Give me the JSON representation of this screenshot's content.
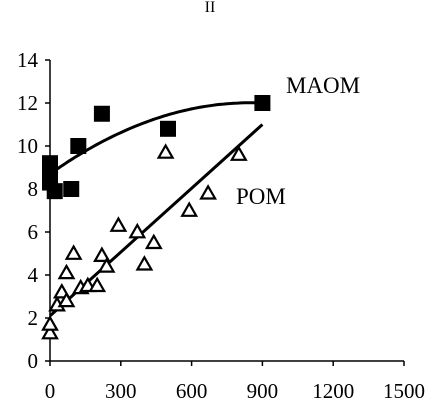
{
  "chart_data": {
    "type": "scatter",
    "title": "II",
    "xlabel": "",
    "ylabel": "",
    "xlim": [
      0,
      1500
    ],
    "ylim": [
      0,
      14
    ],
    "x_ticks": [
      "0",
      "300",
      "600",
      "900",
      "1200",
      "1500"
    ],
    "y_ticks": [
      "0",
      "2",
      "4",
      "6",
      "8",
      "10",
      "12",
      "14"
    ],
    "grid": false,
    "legend": "none",
    "series": [
      {
        "name": "MAOM",
        "marker": "filled-square",
        "color": "#000000",
        "points": [
          {
            "x": 0,
            "y": 9.2
          },
          {
            "x": 0,
            "y": 8.6
          },
          {
            "x": 0,
            "y": 8.3
          },
          {
            "x": 20,
            "y": 7.9
          },
          {
            "x": 90,
            "y": 8.0
          },
          {
            "x": 120,
            "y": 10.0
          },
          {
            "x": 220,
            "y": 11.5
          },
          {
            "x": 500,
            "y": 10.8
          },
          {
            "x": 900,
            "y": 12.0
          }
        ],
        "trend": {
          "kind": "quadratic",
          "x_range": [
            0,
            900
          ],
          "y_at_start": 8.7,
          "y_at_end": 12.0,
          "x_of_max": 850
        }
      },
      {
        "name": "POM",
        "marker": "open-triangle",
        "color": "#000000",
        "points": [
          {
            "x": 0,
            "y": 1.3
          },
          {
            "x": 0,
            "y": 1.7
          },
          {
            "x": 30,
            "y": 2.6
          },
          {
            "x": 50,
            "y": 3.2
          },
          {
            "x": 70,
            "y": 2.8
          },
          {
            "x": 70,
            "y": 4.1
          },
          {
            "x": 100,
            "y": 5.0
          },
          {
            "x": 130,
            "y": 3.4
          },
          {
            "x": 160,
            "y": 3.5
          },
          {
            "x": 200,
            "y": 3.5
          },
          {
            "x": 220,
            "y": 4.9
          },
          {
            "x": 240,
            "y": 4.4
          },
          {
            "x": 290,
            "y": 6.3
          },
          {
            "x": 370,
            "y": 6.0
          },
          {
            "x": 400,
            "y": 4.5
          },
          {
            "x": 440,
            "y": 5.5
          },
          {
            "x": 490,
            "y": 9.7
          },
          {
            "x": 590,
            "y": 7.0
          },
          {
            "x": 670,
            "y": 7.8
          },
          {
            "x": 800,
            "y": 9.6
          }
        ],
        "trend": {
          "kind": "linear",
          "x_range": [
            0,
            900
          ],
          "y_at_start": 2.1,
          "y_at_end": 11.0
        }
      }
    ]
  }
}
